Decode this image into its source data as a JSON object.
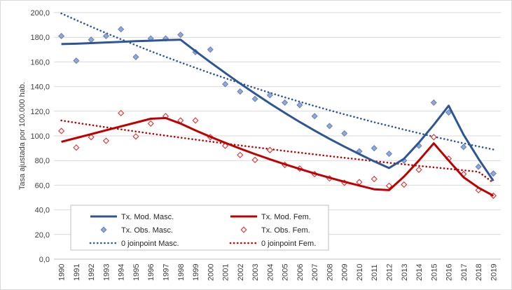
{
  "chart_data": {
    "type": "line",
    "title": "",
    "xlabel": "",
    "ylabel": "Tasa ajustada por 100.000 hab.",
    "ylim": [
      0,
      200
    ],
    "ytick_step": 20,
    "ytick_labels": [
      "0,0",
      "20,0",
      "40,0",
      "60,0",
      "80,0",
      "100,0",
      "120,0",
      "140,0",
      "160,0",
      "180,0",
      "200,0"
    ],
    "categories": [
      "1990",
      "1991",
      "1992",
      "1993",
      "1994",
      "1995",
      "1996",
      "1997",
      "1998",
      "1999",
      "2000",
      "2001",
      "2002",
      "2003",
      "2004",
      "2005",
      "2006",
      "2007",
      "2008",
      "2009",
      "2010",
      "2011",
      "2012",
      "2013",
      "2014",
      "2015",
      "2016",
      "2017",
      "2018",
      "2019"
    ],
    "series": [
      {
        "name": "Tx. Mod. Masc.",
        "style": "line",
        "color": "#2f5597",
        "values": [
          174.5,
          174.8,
          175.3,
          175.8,
          176.3,
          176.8,
          177.2,
          177.7,
          178.0,
          168.8,
          159.8,
          151.0,
          142.5,
          134.3,
          126.3,
          118.7,
          111.3,
          104.3,
          97.6,
          91.3,
          85.2,
          79.4,
          73.9,
          81.5,
          94.5,
          109.0,
          124.5,
          101.0,
          81.5,
          63.5
        ]
      },
      {
        "name": "Tx. Mod. Fem.",
        "style": "line",
        "color": "#c00000",
        "values": [
          95.2,
          98.3,
          101.4,
          104.6,
          107.7,
          110.8,
          113.9,
          114.5,
          110.0,
          104.5,
          99.3,
          94.4,
          89.7,
          85.2,
          81.0,
          77.0,
          73.2,
          69.5,
          66.1,
          62.8,
          59.7,
          56.7,
          56.0,
          67.0,
          80.0,
          94.0,
          80.0,
          66.5,
          58.0,
          51.5
        ]
      },
      {
        "name": "Tx. Obs. Masc.",
        "style": "marker",
        "marker": "diamond-filled",
        "color": "#2f5597",
        "values": [
          181,
          161,
          178,
          181,
          186.5,
          164,
          179,
          179,
          182,
          168,
          170,
          142,
          136,
          130,
          133,
          127,
          125,
          116,
          108,
          102,
          87.5,
          90,
          85.5,
          80,
          92,
          127,
          119,
          91,
          75,
          69.5
        ]
      },
      {
        "name": "Tx. Obs. Fem.",
        "style": "marker",
        "marker": "diamond-open",
        "color": "#e03030",
        "values": [
          104,
          90.5,
          99,
          96,
          118.5,
          99.5,
          110,
          116,
          112.5,
          112.5,
          99,
          92,
          84.5,
          80.5,
          88.5,
          76.5,
          73.5,
          69,
          65.5,
          62,
          62.5,
          65,
          59.5,
          60.5,
          72.5,
          99,
          81.5,
          69,
          56,
          51.5
        ]
      },
      {
        "name": "0 joinpoint Masc.",
        "style": "dotted",
        "color": "#2f5597",
        "values": [
          199.3,
          193.9,
          188.6,
          183.4,
          178.4,
          173.5,
          168.7,
          164.1,
          159.6,
          155.2,
          150.9,
          146.8,
          142.8,
          138.8,
          135.0,
          131.3,
          127.7,
          124.2,
          120.8,
          117.5,
          114.3,
          111.1,
          108.1,
          105.1,
          102.2,
          99.4,
          96.7,
          94.0,
          91.4,
          89.0
        ]
      },
      {
        "name": "0 joinpoint Fem.",
        "style": "dotted",
        "color": "#c00000",
        "values": [
          112.5,
          110.6,
          108.8,
          107.0,
          105.3,
          103.6,
          101.9,
          100.2,
          98.6,
          97.0,
          95.4,
          93.8,
          92.3,
          90.8,
          89.3,
          87.8,
          86.4,
          85.0,
          83.6,
          82.2,
          80.9,
          79.5,
          78.2,
          77.0,
          75.7,
          74.5,
          73.3,
          72.1,
          70.9,
          62.0
        ]
      }
    ],
    "legend": {
      "placement": "bottom-left",
      "entries": [
        "Tx. Mod. Masc.",
        "Tx. Mod. Fem.",
        "Tx. Obs. Masc.",
        "Tx. Obs. Fem.",
        "0 joinpoint Masc.",
        "0 joinpoint Fem."
      ]
    },
    "grid": true
  }
}
